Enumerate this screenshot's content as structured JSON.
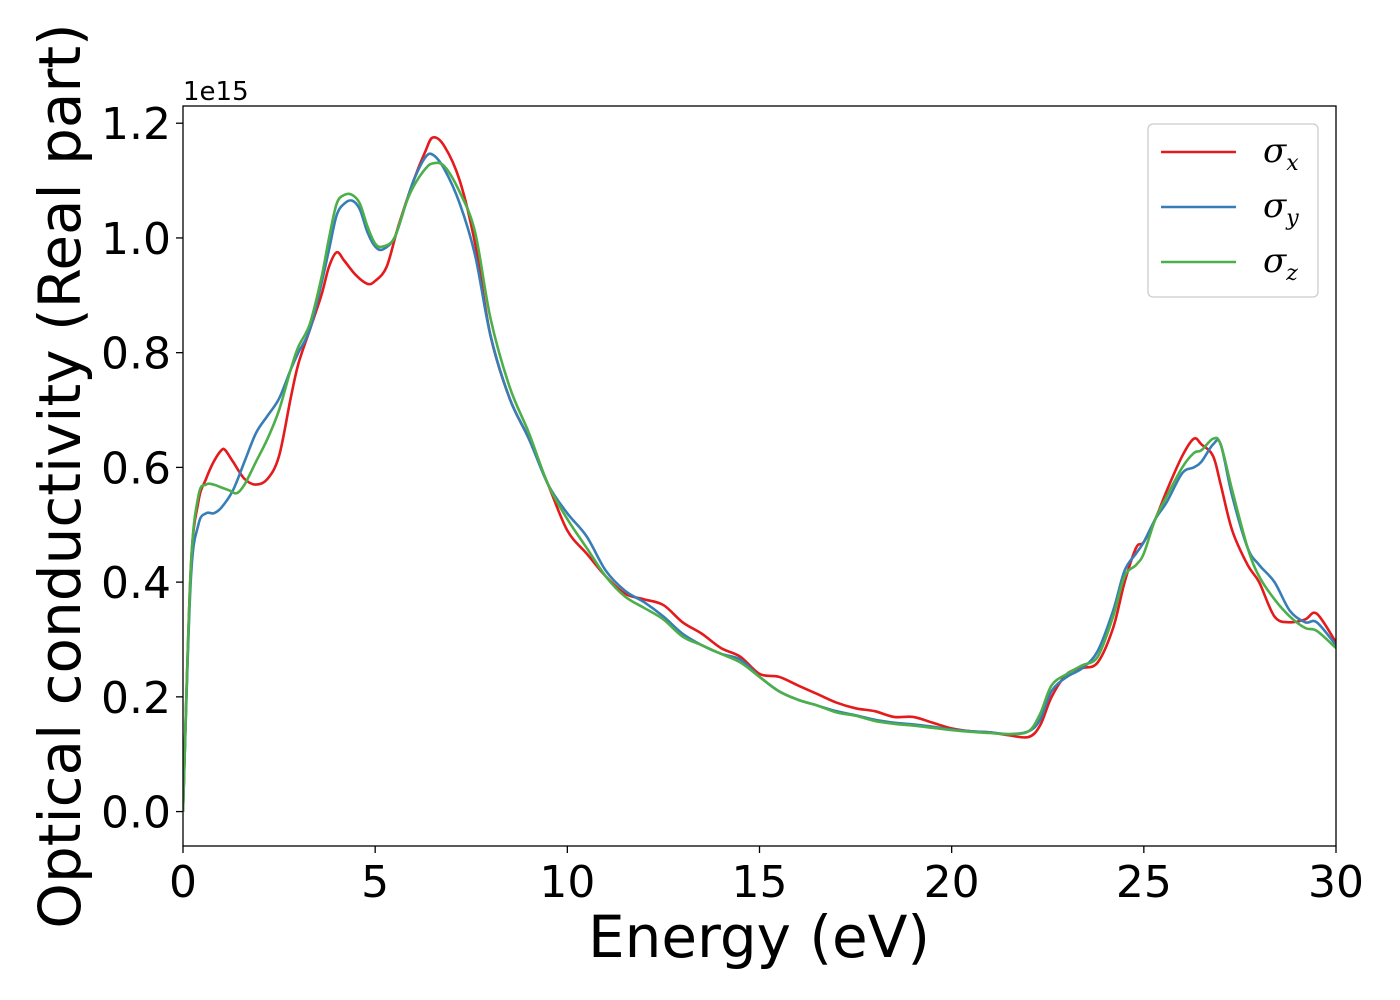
{
  "chart_data": {
    "type": "line",
    "xlabel": "Energy (eV)",
    "ylabel": "Optical conductivity (Real part)",
    "y_offset_text": "1e15",
    "xlim": [
      0,
      30
    ],
    "ylim": [
      -0.06,
      1.23
    ],
    "y_scale_factor": 1000000000000000.0,
    "x_ticks": [
      0,
      5,
      10,
      15,
      20,
      25,
      30
    ],
    "x_tick_labels": [
      "0",
      "5",
      "10",
      "15",
      "20",
      "25",
      "30"
    ],
    "y_ticks": [
      0.0,
      0.2,
      0.4,
      0.6,
      0.8,
      1.0,
      1.2
    ],
    "y_tick_labels": [
      "0.0",
      "0.2",
      "0.4",
      "0.6",
      "0.8",
      "1.0",
      "1.2"
    ],
    "grid": false,
    "legend_position": "top-right",
    "series": [
      {
        "name": "σ_x",
        "symbol": "σ",
        "subscript": "x",
        "color": "#e41a1c",
        "x": [
          0,
          0.2,
          0.4,
          0.6,
          0.8,
          1.0,
          1.1,
          1.3,
          1.6,
          1.9,
          2.2,
          2.5,
          2.8,
          3.0,
          3.3,
          3.6,
          3.8,
          4.0,
          4.2,
          4.5,
          4.8,
          5.0,
          5.3,
          5.6,
          6.0,
          6.3,
          6.5,
          6.8,
          7.2,
          7.6,
          8.0,
          8.5,
          9.0,
          9.5,
          10.0,
          10.5,
          11.0,
          11.5,
          12.0,
          12.5,
          13.0,
          13.5,
          14.0,
          14.5,
          15.0,
          15.5,
          16.0,
          16.5,
          17.0,
          17.5,
          18.0,
          18.5,
          19.0,
          19.5,
          20.0,
          20.5,
          21.0,
          21.5,
          22.0,
          22.3,
          22.6,
          23.0,
          23.4,
          23.8,
          24.2,
          24.5,
          24.8,
          25.0,
          25.3,
          25.6,
          26.0,
          26.3,
          26.5,
          26.8,
          27.0,
          27.3,
          27.7,
          28.0,
          28.4,
          28.8,
          29.2,
          29.5,
          30.0
        ],
        "values": [
          0.0,
          0.42,
          0.54,
          0.58,
          0.61,
          0.63,
          0.63,
          0.61,
          0.58,
          0.57,
          0.58,
          0.62,
          0.72,
          0.78,
          0.84,
          0.9,
          0.95,
          0.975,
          0.96,
          0.935,
          0.92,
          0.925,
          0.95,
          1.02,
          1.1,
          1.15,
          1.175,
          1.16,
          1.1,
          0.99,
          0.83,
          0.72,
          0.65,
          0.57,
          0.49,
          0.45,
          0.41,
          0.38,
          0.37,
          0.36,
          0.33,
          0.31,
          0.285,
          0.27,
          0.24,
          0.235,
          0.22,
          0.205,
          0.19,
          0.18,
          0.175,
          0.165,
          0.165,
          0.155,
          0.145,
          0.14,
          0.138,
          0.133,
          0.13,
          0.15,
          0.2,
          0.24,
          0.25,
          0.26,
          0.32,
          0.4,
          0.46,
          0.47,
          0.51,
          0.56,
          0.62,
          0.65,
          0.64,
          0.62,
          0.57,
          0.49,
          0.43,
          0.4,
          0.34,
          0.33,
          0.335,
          0.345,
          0.295
        ]
      },
      {
        "name": "σ_y",
        "symbol": "σ",
        "subscript": "y",
        "color": "#377eb8",
        "x": [
          0,
          0.2,
          0.4,
          0.6,
          0.8,
          1.0,
          1.3,
          1.6,
          1.9,
          2.2,
          2.5,
          2.8,
          3.0,
          3.3,
          3.6,
          3.8,
          4.0,
          4.2,
          4.4,
          4.6,
          4.8,
          5.0,
          5.2,
          5.5,
          5.8,
          6.0,
          6.3,
          6.5,
          6.8,
          7.2,
          7.6,
          8.0,
          8.5,
          9.0,
          9.5,
          10.0,
          10.5,
          11.0,
          11.5,
          12.0,
          12.5,
          13.0,
          13.5,
          14.0,
          14.5,
          15.0,
          15.5,
          16.0,
          16.5,
          17.0,
          17.5,
          18.0,
          18.5,
          19.0,
          19.5,
          20.0,
          20.5,
          21.0,
          21.5,
          22.0,
          22.3,
          22.6,
          23.0,
          23.4,
          23.8,
          24.2,
          24.5,
          24.8,
          25.0,
          25.3,
          25.6,
          26.0,
          26.3,
          26.5,
          26.8,
          27.0,
          27.3,
          27.7,
          28.0,
          28.4,
          28.8,
          29.2,
          29.5,
          30.0
        ],
        "values": [
          0.0,
          0.4,
          0.5,
          0.52,
          0.52,
          0.53,
          0.56,
          0.61,
          0.66,
          0.69,
          0.72,
          0.77,
          0.8,
          0.84,
          0.92,
          0.98,
          1.04,
          1.06,
          1.065,
          1.05,
          1.01,
          0.985,
          0.98,
          1.0,
          1.06,
          1.1,
          1.14,
          1.145,
          1.12,
          1.06,
          0.97,
          0.83,
          0.72,
          0.65,
          0.57,
          0.52,
          0.48,
          0.42,
          0.385,
          0.365,
          0.34,
          0.31,
          0.29,
          0.275,
          0.265,
          0.235,
          0.21,
          0.195,
          0.185,
          0.175,
          0.168,
          0.16,
          0.155,
          0.152,
          0.148,
          0.143,
          0.14,
          0.138,
          0.135,
          0.14,
          0.16,
          0.21,
          0.235,
          0.25,
          0.28,
          0.35,
          0.42,
          0.45,
          0.47,
          0.51,
          0.54,
          0.59,
          0.6,
          0.61,
          0.64,
          0.64,
          0.55,
          0.46,
          0.43,
          0.4,
          0.35,
          0.33,
          0.33,
          0.29
        ]
      },
      {
        "name": "σ_z",
        "symbol": "σ",
        "subscript": "z",
        "color": "#4daf4a",
        "x": [
          0,
          0.2,
          0.4,
          0.6,
          0.8,
          1.0,
          1.2,
          1.4,
          1.6,
          1.9,
          2.2,
          2.5,
          2.8,
          3.0,
          3.3,
          3.6,
          3.8,
          4.0,
          4.2,
          4.4,
          4.6,
          4.8,
          5.0,
          5.2,
          5.5,
          5.8,
          6.0,
          6.3,
          6.5,
          6.8,
          7.2,
          7.6,
          8.0,
          8.5,
          9.0,
          9.5,
          10.0,
          10.5,
          11.0,
          11.5,
          12.0,
          12.5,
          13.0,
          13.5,
          14.0,
          14.5,
          15.0,
          15.5,
          16.0,
          16.5,
          17.0,
          17.5,
          18.0,
          18.5,
          19.0,
          19.5,
          20.0,
          20.5,
          21.0,
          21.5,
          22.0,
          22.3,
          22.6,
          23.0,
          23.4,
          23.8,
          24.2,
          24.5,
          24.8,
          25.0,
          25.3,
          25.6,
          26.0,
          26.3,
          26.5,
          26.8,
          27.0,
          27.3,
          27.7,
          28.0,
          28.4,
          28.8,
          29.2,
          29.5,
          30.0
        ],
        "values": [
          0.0,
          0.42,
          0.55,
          0.57,
          0.57,
          0.565,
          0.56,
          0.555,
          0.57,
          0.61,
          0.65,
          0.7,
          0.77,
          0.81,
          0.85,
          0.93,
          1.0,
          1.06,
          1.075,
          1.075,
          1.06,
          1.02,
          0.99,
          0.985,
          1.0,
          1.06,
          1.09,
          1.12,
          1.13,
          1.125,
          1.08,
          1.01,
          0.86,
          0.74,
          0.66,
          0.57,
          0.51,
          0.46,
          0.41,
          0.375,
          0.355,
          0.335,
          0.305,
          0.29,
          0.275,
          0.26,
          0.235,
          0.21,
          0.195,
          0.185,
          0.173,
          0.167,
          0.158,
          0.153,
          0.15,
          0.146,
          0.142,
          0.139,
          0.137,
          0.135,
          0.14,
          0.17,
          0.22,
          0.24,
          0.255,
          0.27,
          0.34,
          0.41,
          0.43,
          0.45,
          0.51,
          0.55,
          0.6,
          0.625,
          0.63,
          0.65,
          0.64,
          0.56,
          0.46,
          0.41,
          0.37,
          0.34,
          0.32,
          0.315,
          0.285
        ]
      }
    ]
  }
}
